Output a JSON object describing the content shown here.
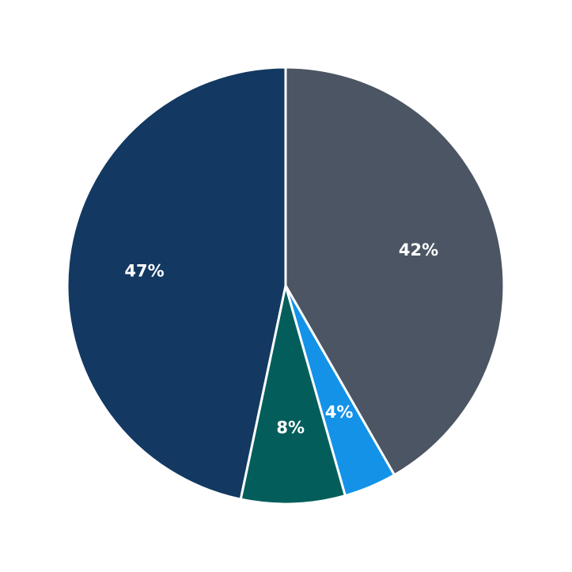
{
  "chart_data": {
    "type": "pie",
    "start_angle": "top",
    "direction": "clockwise",
    "slices": [
      {
        "label": "42%",
        "value": 41.7,
        "color": "#4b5563"
      },
      {
        "label": "4%",
        "value": 3.9,
        "color": "#1392e8"
      },
      {
        "label": "8%",
        "value": 7.7,
        "color": "#035e5b"
      },
      {
        "label": "47%",
        "value": 46.7,
        "color": "#133962"
      }
    ],
    "slice_border_color": "#ffffff",
    "legend": "none"
  }
}
